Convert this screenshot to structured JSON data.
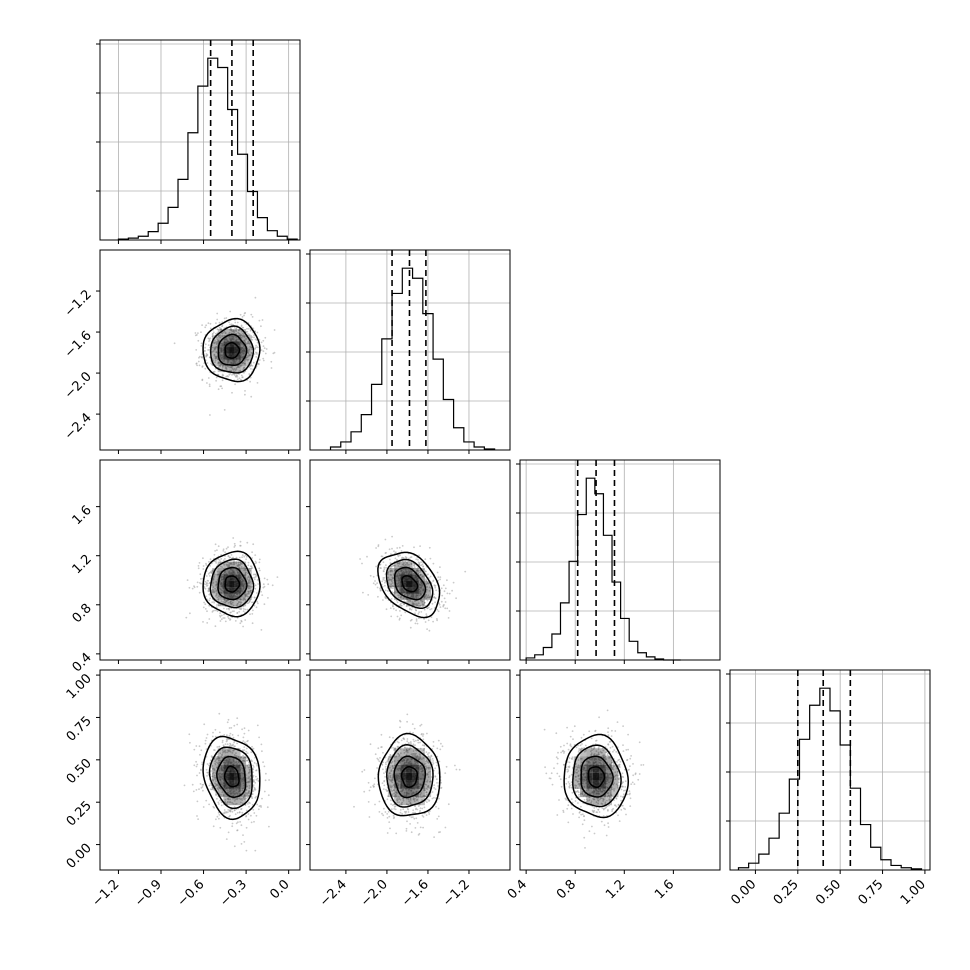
{
  "chart_data": {
    "type": "corner",
    "description_source": "corner plot of 4 parameters: 1D marginal histograms on the diagonal with 16/50/84% quantile dashed lines; 2D scatter + 2D histogram + density contours below diagonal",
    "parameters": [
      {
        "name": "",
        "range": [
          -1.33,
          0.08
        ],
        "ticks": [
          -1.2,
          -0.9,
          -0.6,
          -0.3,
          0.0
        ],
        "tick_labels": [
          "−1.2",
          "−0.9",
          "−0.6",
          "−0.3",
          "0.0"
        ],
        "mean": -0.4,
        "sigma": 0.1,
        "quantiles": [
          -0.55,
          -0.4,
          -0.25
        ]
      },
      {
        "name": "",
        "range": [
          -2.75,
          -0.8
        ],
        "ticks": [
          -2.4,
          -2.0,
          -1.6,
          -1.2
        ],
        "tick_labels": [
          "−2.4",
          "−2.0",
          "−1.6",
          "−1.2"
        ],
        "mean": -1.78,
        "sigma": 0.15,
        "quantiles": [
          -1.95,
          -1.78,
          -1.62
        ]
      },
      {
        "name": "",
        "range": [
          0.35,
          1.98
        ],
        "ticks": [
          0.4,
          0.8,
          1.2,
          1.6
        ],
        "tick_labels": [
          "0.4",
          "0.8",
          "1.2",
          "1.6"
        ],
        "mean": 0.97,
        "sigma": 0.13,
        "quantiles": [
          0.82,
          0.97,
          1.12
        ]
      },
      {
        "name": "",
        "range": [
          -0.15,
          1.03
        ],
        "ticks": [
          0.0,
          0.25,
          0.5,
          0.75,
          1.0
        ],
        "tick_labels": [
          "0.00",
          "0.25",
          "0.50",
          "0.75",
          "1.00"
        ],
        "mean": 0.4,
        "sigma": 0.12,
        "quantiles": [
          0.25,
          0.4,
          0.56
        ]
      }
    ],
    "histograms": [
      {
        "param": 0,
        "bins": [
          -1.2,
          -1.13,
          -1.06,
          -0.99,
          -0.92,
          -0.85,
          -0.78,
          -0.71,
          -0.64,
          -0.57,
          -0.5,
          -0.43,
          -0.36,
          -0.29,
          -0.22,
          -0.15,
          -0.08,
          -0.01,
          0.06
        ],
        "counts": [
          1,
          2,
          4,
          9,
          18,
          35,
          65,
          115,
          165,
          195,
          185,
          140,
          92,
          52,
          24,
          10,
          4,
          1
        ]
      },
      {
        "param": 1,
        "bins": [
          -2.55,
          -2.45,
          -2.35,
          -2.25,
          -2.15,
          -2.05,
          -1.95,
          -1.85,
          -1.75,
          -1.65,
          -1.55,
          -1.45,
          -1.35,
          -1.25,
          -1.15,
          -1.05,
          -0.95
        ],
        "counts": [
          3,
          8,
          18,
          35,
          65,
          110,
          155,
          180,
          170,
          135,
          90,
          50,
          22,
          8,
          3,
          1
        ]
      },
      {
        "param": 2,
        "bins": [
          0.4,
          0.47,
          0.54,
          0.61,
          0.68,
          0.75,
          0.82,
          0.89,
          0.96,
          1.03,
          1.1,
          1.17,
          1.24,
          1.31,
          1.38,
          1.45,
          1.52,
          1.59,
          1.66
        ],
        "counts": [
          2,
          5,
          12,
          25,
          55,
          95,
          140,
          175,
          160,
          120,
          75,
          40,
          18,
          7,
          3,
          1,
          0,
          0
        ]
      },
      {
        "param": 3,
        "bins": [
          -0.1,
          -0.04,
          0.02,
          0.08,
          0.14,
          0.2,
          0.26,
          0.32,
          0.38,
          0.44,
          0.5,
          0.56,
          0.62,
          0.68,
          0.74,
          0.8,
          0.86,
          0.92,
          0.98
        ],
        "counts": [
          2,
          6,
          14,
          28,
          50,
          80,
          115,
          145,
          160,
          140,
          110,
          72,
          40,
          20,
          9,
          4,
          2,
          1
        ]
      }
    ],
    "covariances": [
      {
        "x": 0,
        "y": 1,
        "rho": 0.0
      },
      {
        "x": 0,
        "y": 2,
        "rho": 0.0
      },
      {
        "x": 1,
        "y": 2,
        "rho": -0.35
      },
      {
        "x": 0,
        "y": 3,
        "rho": -0.15
      },
      {
        "x": 1,
        "y": 3,
        "rho": 0.0
      },
      {
        "x": 2,
        "y": 3,
        "rho": -0.05
      }
    ],
    "contour_levels_sigma": [
      0.5,
      1.0,
      1.5,
      2.0
    ],
    "scatter_points_per_panel": 900,
    "grid": true,
    "colors": {
      "contour": "#000000",
      "scatter": "#9e9e9e",
      "hist2d": "#000000",
      "quantile": "#000000"
    }
  }
}
